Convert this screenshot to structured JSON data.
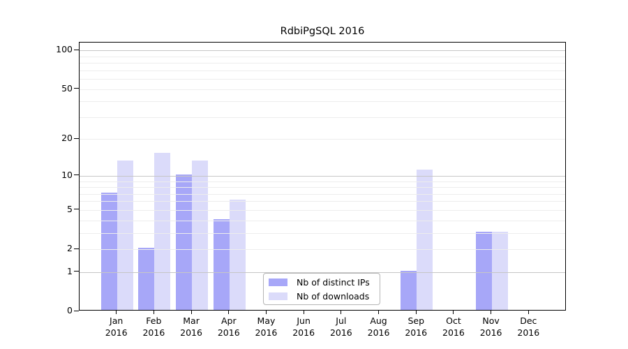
{
  "chart_data": {
    "type": "bar",
    "title": "RdbiPgSQL 2016",
    "categories": [
      "Jan",
      "Feb",
      "Mar",
      "Apr",
      "May",
      "Jun",
      "Jul",
      "Aug",
      "Sep",
      "Oct",
      "Nov",
      "Dec"
    ],
    "category_sublabel": "2016",
    "series": [
      {
        "name": "Nb of distinct IPs",
        "color": "#a7a7f8",
        "values": [
          7,
          2,
          10,
          4,
          0,
          0,
          0,
          0,
          1,
          0,
          3,
          0
        ]
      },
      {
        "name": "Nb of downloads",
        "color": "#dbdbfa",
        "values": [
          13,
          15,
          13,
          6,
          0,
          0,
          0,
          0,
          11,
          0,
          3,
          0
        ]
      }
    ],
    "y_axis": {
      "scale": "log1p",
      "tick_values": [
        0,
        1,
        2,
        5,
        10,
        20,
        50,
        100
      ],
      "major_gridlines": [
        1,
        10,
        100
      ],
      "minor_gridlines": [
        2,
        3,
        4,
        5,
        6,
        7,
        8,
        9,
        20,
        30,
        40,
        50,
        60,
        70,
        80,
        90
      ],
      "top_value": 115
    },
    "legend_position": "bottom-center",
    "grid": true
  },
  "colors": {
    "bar_distinct_ips": "#a7a7f8",
    "bar_downloads": "#dbdbfa",
    "major_grid": "#c6c6c6",
    "minor_grid": "#ededed",
    "axis": "#000000",
    "background": "#ffffff"
  }
}
